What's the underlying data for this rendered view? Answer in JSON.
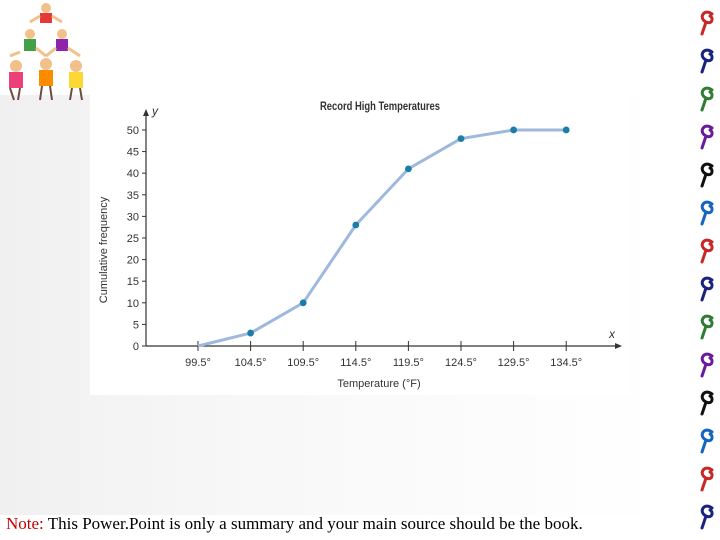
{
  "colors": {
    "line": "#9fb9dc",
    "point": "#1a7ea6",
    "note_label": "#c00000"
  },
  "chart_data": {
    "type": "line",
    "title": "Record High Temperatures",
    "xlabel": "Temperature (°F)",
    "ylabel": "Cumulative frequency",
    "x_axis_symbol": "x",
    "y_axis_symbol": "y",
    "categories": [
      "99.5°",
      "104.5°",
      "109.5°",
      "114.5°",
      "119.5°",
      "124.5°",
      "129.5°",
      "134.5°"
    ],
    "x": [
      99.5,
      104.5,
      109.5,
      114.5,
      119.5,
      124.5,
      129.5,
      134.5
    ],
    "values": [
      0,
      3,
      10,
      28,
      41,
      48,
      50,
      50
    ],
    "yticks": [
      0,
      5,
      10,
      15,
      20,
      25,
      30,
      35,
      40,
      45,
      50
    ],
    "ylim": [
      0,
      53
    ]
  },
  "footer": {
    "note_label": "Note:",
    "note_text": " This Power.Point is only a summary and your main source should be the book."
  }
}
